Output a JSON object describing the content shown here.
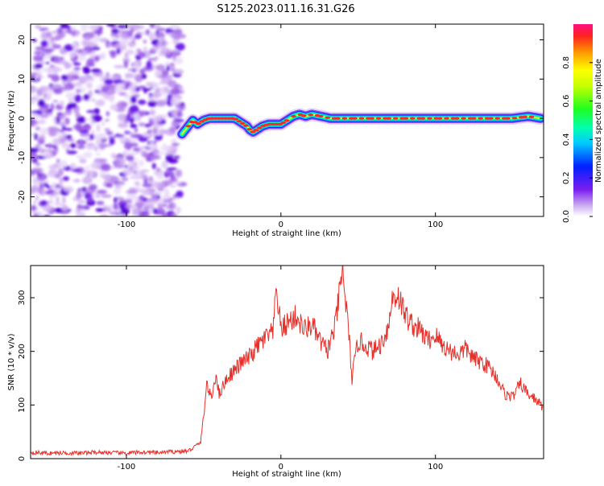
{
  "title": "S125.2023.011.16.31.G26",
  "chart_data": [
    {
      "type": "heatmap",
      "xlabel": "Height of straight line (km)",
      "ylabel": "Frequency (Hz)",
      "xlim": [
        -162,
        170
      ],
      "ylim": [
        -25,
        24
      ],
      "xticks": [
        -100,
        0,
        100
      ],
      "yticks": [
        -20,
        -10,
        0,
        10,
        20
      ],
      "colorbar": {
        "label": "Normalized spectral amplitude",
        "range": [
          0,
          1
        ],
        "ticks": [
          0.0,
          0.2,
          0.4,
          0.6,
          0.8
        ]
      },
      "noise_region": {
        "x": [
          -162,
          -64
        ],
        "y": [
          -25,
          24
        ]
      },
      "ridge": {
        "x": [
          -64,
          -60,
          -57,
          -54,
          -50,
          -46,
          -42,
          -36,
          -30,
          -26,
          -22,
          -20,
          -18,
          -16,
          -12,
          -8,
          -4,
          0,
          4,
          8,
          12,
          16,
          20,
          26,
          32,
          40,
          50,
          60,
          70,
          80,
          90,
          100,
          110,
          120,
          130,
          140,
          150,
          160,
          168
        ],
        "freq": [
          -4,
          -2,
          -0.5,
          -1.5,
          -0.5,
          0,
          0,
          0,
          0,
          -1,
          -2,
          -3,
          -3.5,
          -3,
          -2,
          -1.5,
          -1.5,
          -1.5,
          -0.5,
          0.5,
          1,
          0.5,
          1,
          0.5,
          0,
          0,
          0,
          0,
          0,
          0,
          0,
          0,
          0,
          0,
          0,
          0,
          0,
          0.5,
          0
        ]
      }
    },
    {
      "type": "line",
      "xlabel": "Height of straight line (km)",
      "ylabel": "SNR (10 * v/v)",
      "xlim": [
        -162,
        170
      ],
      "ylim": [
        0,
        360
      ],
      "xticks": [
        -100,
        0,
        100
      ],
      "yticks": [
        0,
        100,
        200,
        300
      ],
      "color": "#e8302a",
      "series": [
        {
          "x": [
            -162,
            -150,
            -140,
            -130,
            -120,
            -110,
            -100,
            -90,
            -80,
            -70,
            -60,
            -52,
            -50,
            -48,
            -45,
            -42,
            -40,
            -35,
            -30,
            -25,
            -20,
            -15,
            -10,
            -5,
            -3,
            0,
            5,
            10,
            15,
            20,
            25,
            30,
            35,
            38,
            40,
            42,
            44,
            46,
            50,
            55,
            60,
            65,
            70,
            72,
            76,
            80,
            85,
            90,
            95,
            100,
            105,
            110,
            115,
            120,
            125,
            130,
            135,
            140,
            145,
            150,
            155,
            160,
            165,
            170
          ],
          "values": [
            12,
            10,
            11,
            10,
            12,
            11,
            10,
            12,
            11,
            13,
            14,
            30,
            80,
            140,
            110,
            160,
            120,
            150,
            165,
            180,
            190,
            210,
            225,
            235,
            320,
            240,
            255,
            265,
            240,
            250,
            220,
            200,
            245,
            310,
            350,
            290,
            230,
            150,
            220,
            210,
            200,
            215,
            250,
            300,
            305,
            270,
            250,
            240,
            220,
            230,
            210,
            200,
            195,
            205,
            185,
            180,
            170,
            150,
            120,
            115,
            140,
            120,
            110,
            95
          ]
        }
      ]
    }
  ]
}
